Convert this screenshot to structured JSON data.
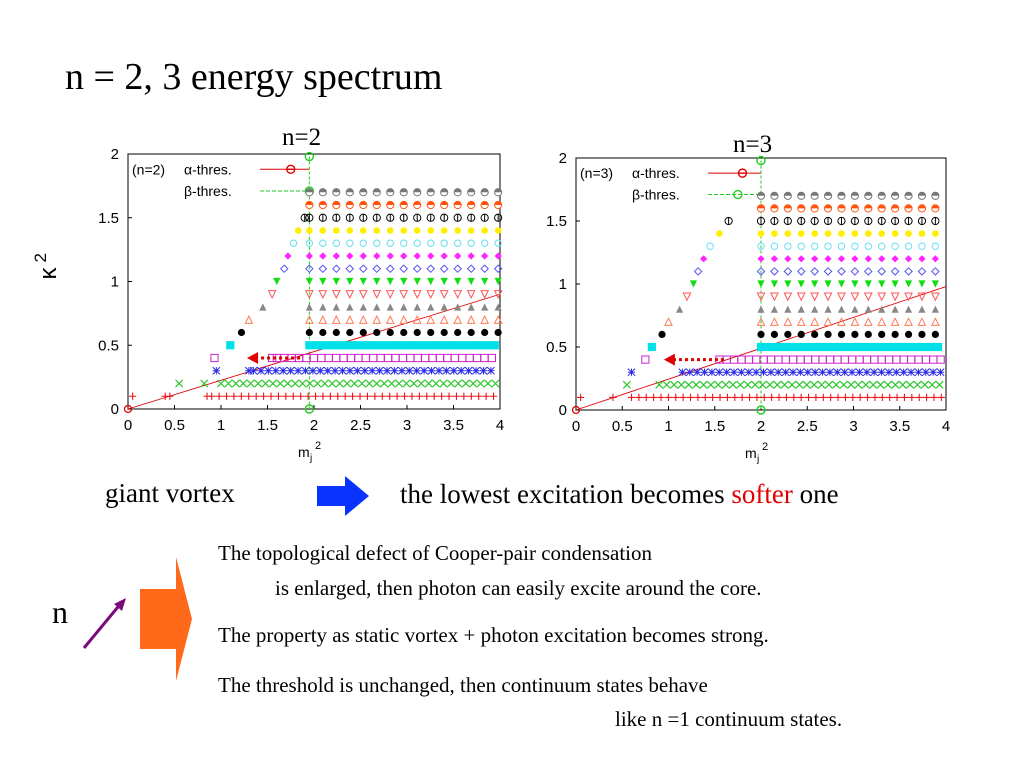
{
  "slide": {
    "title": "n = 2, 3 energy spectrum",
    "left_label": "giant vortex",
    "right_label_pre": "the lowest excitation becomes ",
    "right_label_em": "softer",
    "right_label_post": " one",
    "n_label": "n",
    "bullets": [
      {
        "line1": "The topological defect of Cooper-pair condensation",
        "line2": "is enlarged, then photon can easily excite around the core."
      },
      {
        "line1": "The property as static vortex + photon excitation becomes strong.",
        "line2": ""
      },
      {
        "line1": "The threshold is unchanged, then continuum states behave",
        "line2": "like n =1 continuum states."
      }
    ],
    "colors": {
      "softer": "#e00000",
      "blue_arrow": "#0a33ff",
      "orange_arrow": "#ff6a1a",
      "purple_arrow": "#7a0a7a",
      "red_dotted": "#e00000"
    }
  },
  "chart_data": [
    {
      "type": "scatter",
      "title": "n=2",
      "xlabel": "m_j^2",
      "ylabel": "κ^2",
      "xlim": [
        0,
        4
      ],
      "ylim": [
        0,
        2
      ],
      "xticks": [
        "0",
        "0.5",
        "1",
        "1.5",
        "2",
        "2.5",
        "3",
        "3.5",
        "4"
      ],
      "yticks": [
        "0",
        "0.5",
        "1",
        "1.5",
        "2"
      ],
      "legend": {
        "placement": "top-left",
        "label_prefix": "(n=2)",
        "entries": [
          "α-thres.",
          "β-thres."
        ]
      },
      "alpha_threshold": {
        "x": 1.75,
        "y": 1.88
      },
      "beta_threshold": {
        "x": 1.95,
        "y": 1.71
      },
      "vertical_line_x": 1.95,
      "red_line": {
        "from": [
          0,
          0
        ],
        "to": [
          4,
          0.9
        ]
      },
      "arrow": {
        "from_x": 1.85,
        "to_x": 1.28,
        "y": 0.4
      },
      "series": [
        {
          "symbol": "plus",
          "color": "#e8141b",
          "y": 0.1,
          "x_isolated": [
            0.05,
            0.4,
            0.45,
            0.85
          ],
          "x_start": 0.9
        },
        {
          "symbol": "x",
          "color": "#1cc41c",
          "y": 0.2,
          "x_isolated": [
            0.55,
            0.82
          ],
          "x_start": 1.0
        },
        {
          "symbol": "star",
          "color": "#2a2ae8",
          "y": 0.3,
          "x_isolated": [
            0.95,
            1.3
          ],
          "x_start": 1.35
        },
        {
          "symbol": "sq-open",
          "color": "#cc22cc",
          "y": 0.4,
          "x_isolated": [
            0.93,
            1.55
          ],
          "x_start": 1.6
        },
        {
          "symbol": "sq-fill",
          "color": "#00e0e8",
          "y": 0.5,
          "x_isolated": [
            1.1
          ],
          "x_start": 1.95
        },
        {
          "symbol": "circle",
          "color": "#000000",
          "y": 0.6,
          "x_isolated": [
            1.22
          ],
          "x_start": 1.95
        },
        {
          "symbol": "tri-open",
          "color": "#ff7a55",
          "y": 0.7,
          "x_isolated": [
            1.3
          ],
          "x_start": 1.95
        },
        {
          "symbol": "tri-fill",
          "color": "#888888",
          "y": 0.8,
          "x_isolated": [
            1.45
          ],
          "x_start": 1.95
        },
        {
          "symbol": "tri-down",
          "color": "#ff5555",
          "y": 0.9,
          "x_isolated": [
            1.55
          ],
          "x_start": 1.95
        },
        {
          "symbol": "tri-dfill",
          "color": "#11dd11",
          "y": 1.0,
          "x_isolated": [
            1.6
          ],
          "x_start": 1.95
        },
        {
          "symbol": "diamond",
          "color": "#5555ee",
          "y": 1.1,
          "x_isolated": [
            1.68
          ],
          "x_start": 1.95
        },
        {
          "symbol": "dia-fill",
          "color": "#ff22ff",
          "y": 1.2,
          "x_isolated": [
            1.72
          ],
          "x_start": 1.95
        },
        {
          "symbol": "hexagon",
          "color": "#66e0f0",
          "y": 1.3,
          "x_isolated": [
            1.78
          ],
          "x_start": 1.95
        },
        {
          "symbol": "circ-fill",
          "color": "#ffee00",
          "y": 1.4,
          "x_isolated": [
            1.83
          ],
          "x_start": 1.95
        },
        {
          "symbol": "theta",
          "color": "#000000",
          "y": 1.5,
          "x_isolated": [
            1.9
          ],
          "x_start": 1.95
        },
        {
          "symbol": "half",
          "color": "#ff5511",
          "y": 1.6,
          "x_isolated": [],
          "x_start": 1.95
        },
        {
          "symbol": "half",
          "color": "#777777",
          "y": 1.7,
          "x_isolated": [],
          "x_start": 1.95
        }
      ]
    },
    {
      "type": "scatter",
      "title": "n=3",
      "xlabel": "m_j^2",
      "ylabel": "",
      "xlim": [
        0,
        4
      ],
      "ylim": [
        0,
        2
      ],
      "xticks": [
        "0",
        "0.5",
        "1",
        "1.5",
        "2",
        "2.5",
        "3",
        "3.5",
        "4"
      ],
      "yticks": [
        "0",
        "0.5",
        "1",
        "1.5",
        "2"
      ],
      "legend": {
        "placement": "top-left",
        "label_prefix": "(n=3)",
        "entries": [
          "α-thres.",
          "β-thres."
        ]
      },
      "alpha_threshold": {
        "x": 1.8,
        "y": 1.88
      },
      "beta_threshold": {
        "x": 1.75,
        "y": 1.71
      },
      "vertical_line_x": 2.0,
      "red_line": {
        "from": [
          0,
          0
        ],
        "to": [
          4,
          0.98
        ]
      },
      "arrow": {
        "from_x": 1.6,
        "to_x": 0.95,
        "y": 0.4
      },
      "series": [
        {
          "symbol": "plus",
          "color": "#e8141b",
          "y": 0.1,
          "x_isolated": [
            0.05,
            0.4
          ],
          "x_start": 0.6
        },
        {
          "symbol": "x",
          "color": "#1cc41c",
          "y": 0.2,
          "x_isolated": [
            0.55
          ],
          "x_start": 0.9
        },
        {
          "symbol": "star",
          "color": "#2a2ae8",
          "y": 0.3,
          "x_isolated": [
            0.6
          ],
          "x_start": 1.15
        },
        {
          "symbol": "sq-open",
          "color": "#cc22cc",
          "y": 0.4,
          "x_isolated": [
            0.75
          ],
          "x_start": 1.55
        },
        {
          "symbol": "sq-fill",
          "color": "#00e0e8",
          "y": 0.5,
          "x_isolated": [
            0.82
          ],
          "x_start": 2.0
        },
        {
          "symbol": "circle",
          "color": "#000000",
          "y": 0.6,
          "x_isolated": [
            0.93
          ],
          "x_start": 2.0
        },
        {
          "symbol": "tri-open",
          "color": "#ff7a55",
          "y": 0.7,
          "x_isolated": [
            1.0
          ],
          "x_start": 2.0
        },
        {
          "symbol": "tri-fill",
          "color": "#888888",
          "y": 0.8,
          "x_isolated": [
            1.12
          ],
          "x_start": 2.0
        },
        {
          "symbol": "tri-down",
          "color": "#ff5555",
          "y": 0.9,
          "x_isolated": [
            1.2
          ],
          "x_start": 2.0
        },
        {
          "symbol": "tri-dfill",
          "color": "#11dd11",
          "y": 1.0,
          "x_isolated": [
            1.27
          ],
          "x_start": 2.0
        },
        {
          "symbol": "diamond",
          "color": "#5555ee",
          "y": 1.1,
          "x_isolated": [
            1.32
          ],
          "x_start": 2.0
        },
        {
          "symbol": "dia-fill",
          "color": "#ff22ff",
          "y": 1.2,
          "x_isolated": [
            1.38
          ],
          "x_start": 2.0
        },
        {
          "symbol": "hexagon",
          "color": "#66e0f0",
          "y": 1.3,
          "x_isolated": [
            1.45
          ],
          "x_start": 2.0
        },
        {
          "symbol": "circ-fill",
          "color": "#ffee00",
          "y": 1.4,
          "x_isolated": [
            1.55
          ],
          "x_start": 2.0
        },
        {
          "symbol": "theta",
          "color": "#000000",
          "y": 1.5,
          "x_isolated": [
            1.65
          ],
          "x_start": 2.0
        },
        {
          "symbol": "half",
          "color": "#ff5511",
          "y": 1.6,
          "x_isolated": [],
          "x_start": 2.0
        },
        {
          "symbol": "half",
          "color": "#777777",
          "y": 1.7,
          "x_isolated": [],
          "x_start": 2.0
        }
      ]
    }
  ]
}
